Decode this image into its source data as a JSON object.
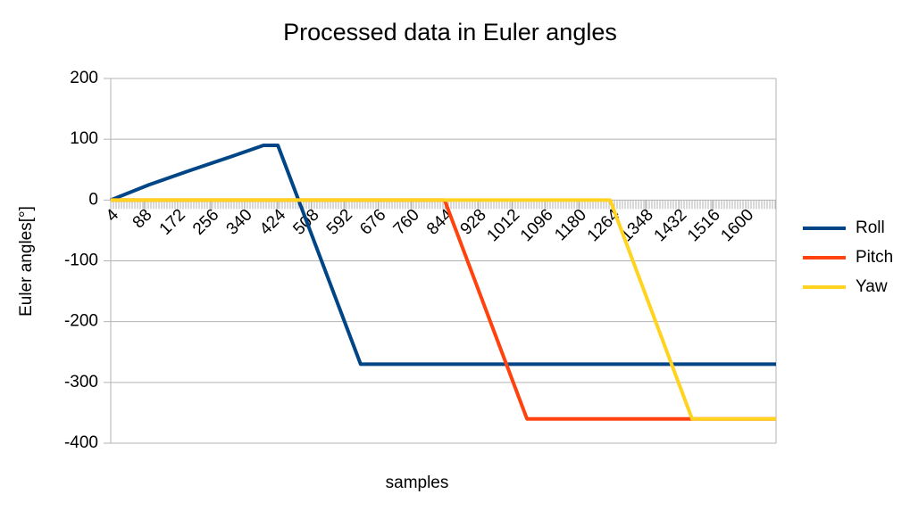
{
  "chart_data": {
    "type": "line",
    "title": "Processed data in Euler angles",
    "x_label": "samples",
    "y_label": "Euler angles[°]",
    "xlim": [
      4,
      1676
    ],
    "xticks": [
      4,
      88,
      172,
      256,
      340,
      424,
      508,
      592,
      676,
      760,
      844,
      928,
      1012,
      1096,
      1180,
      1264,
      1348,
      1432,
      1516,
      1600
    ],
    "ylim": [
      -400,
      200
    ],
    "yticks": [
      -400,
      -300,
      -200,
      -100,
      0,
      100,
      200
    ],
    "grid": true,
    "legend": "right",
    "series": [
      {
        "name": "Roll",
        "color": "#004586",
        "x": [
          4,
          100,
          200,
          300,
          388,
          424,
          632,
          1676
        ],
        "values": [
          0,
          25,
          48,
          70,
          90,
          90,
          -270,
          -270
        ]
      },
      {
        "name": "Pitch",
        "color": "#ff420e",
        "x": [
          4,
          843,
          1050,
          1676
        ],
        "values": [
          0,
          0,
          -360,
          -360
        ]
      },
      {
        "name": "Yaw",
        "color": "#ffd320",
        "x": [
          4,
          1259,
          1465,
          1676
        ],
        "values": [
          0,
          0,
          -360,
          -360
        ]
      }
    ]
  }
}
